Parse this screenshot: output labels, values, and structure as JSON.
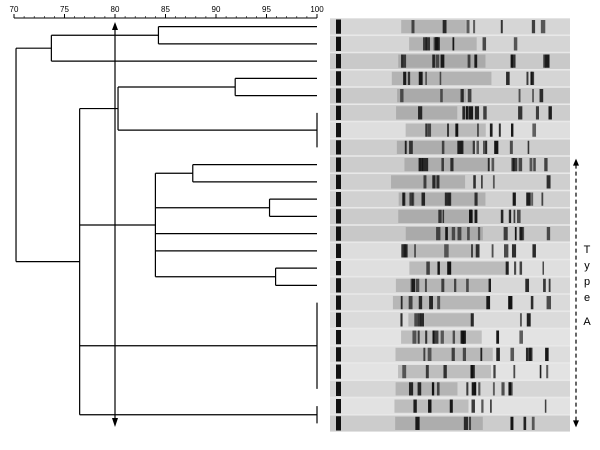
{
  "similarity_scale": {
    "ticks": [
      "70",
      "75",
      "80",
      "85",
      "90",
      "95",
      "100"
    ],
    "range": [
      70,
      100
    ],
    "cutoff_value": 80
  },
  "dendrogram": {
    "leaf_count": 24,
    "clusters": [
      {
        "leaves": [
          0,
          1
        ],
        "similarity": 84.3
      },
      {
        "leaves": [
          0,
          1,
          2
        ],
        "similarity": 73.7
      },
      {
        "leaves": [
          3,
          4
        ],
        "similarity": 91.9
      },
      {
        "leaves": [
          5,
          6,
          7
        ],
        "similarity": 100
      },
      {
        "leaves": [
          3,
          4,
          5,
          6,
          7
        ],
        "similarity": 80.3
      },
      {
        "leaves": [
          8,
          9
        ],
        "similarity": 87.7
      },
      {
        "leaves": [
          10,
          11
        ],
        "similarity": 95.3
      },
      {
        "leaves": [
          14,
          15
        ],
        "similarity": 95.9
      },
      {
        "leaves": [
          8,
          9,
          10,
          11,
          12,
          13,
          14,
          15
        ],
        "similarity": 84.0
      },
      {
        "leaves": [
          16,
          17,
          18,
          19,
          20,
          21
        ],
        "similarity": 100
      },
      {
        "leaves": [
          22,
          23
        ],
        "similarity": 100
      }
    ],
    "line_color": "#000000"
  },
  "gel": {
    "lane_count": 24,
    "background_color": "#e8e8e8",
    "band_color": "#111111"
  },
  "group_bracket": {
    "letters": [
      "T",
      "y",
      "p",
      "e",
      "A"
    ],
    "style": "dashed double-headed arrow"
  }
}
